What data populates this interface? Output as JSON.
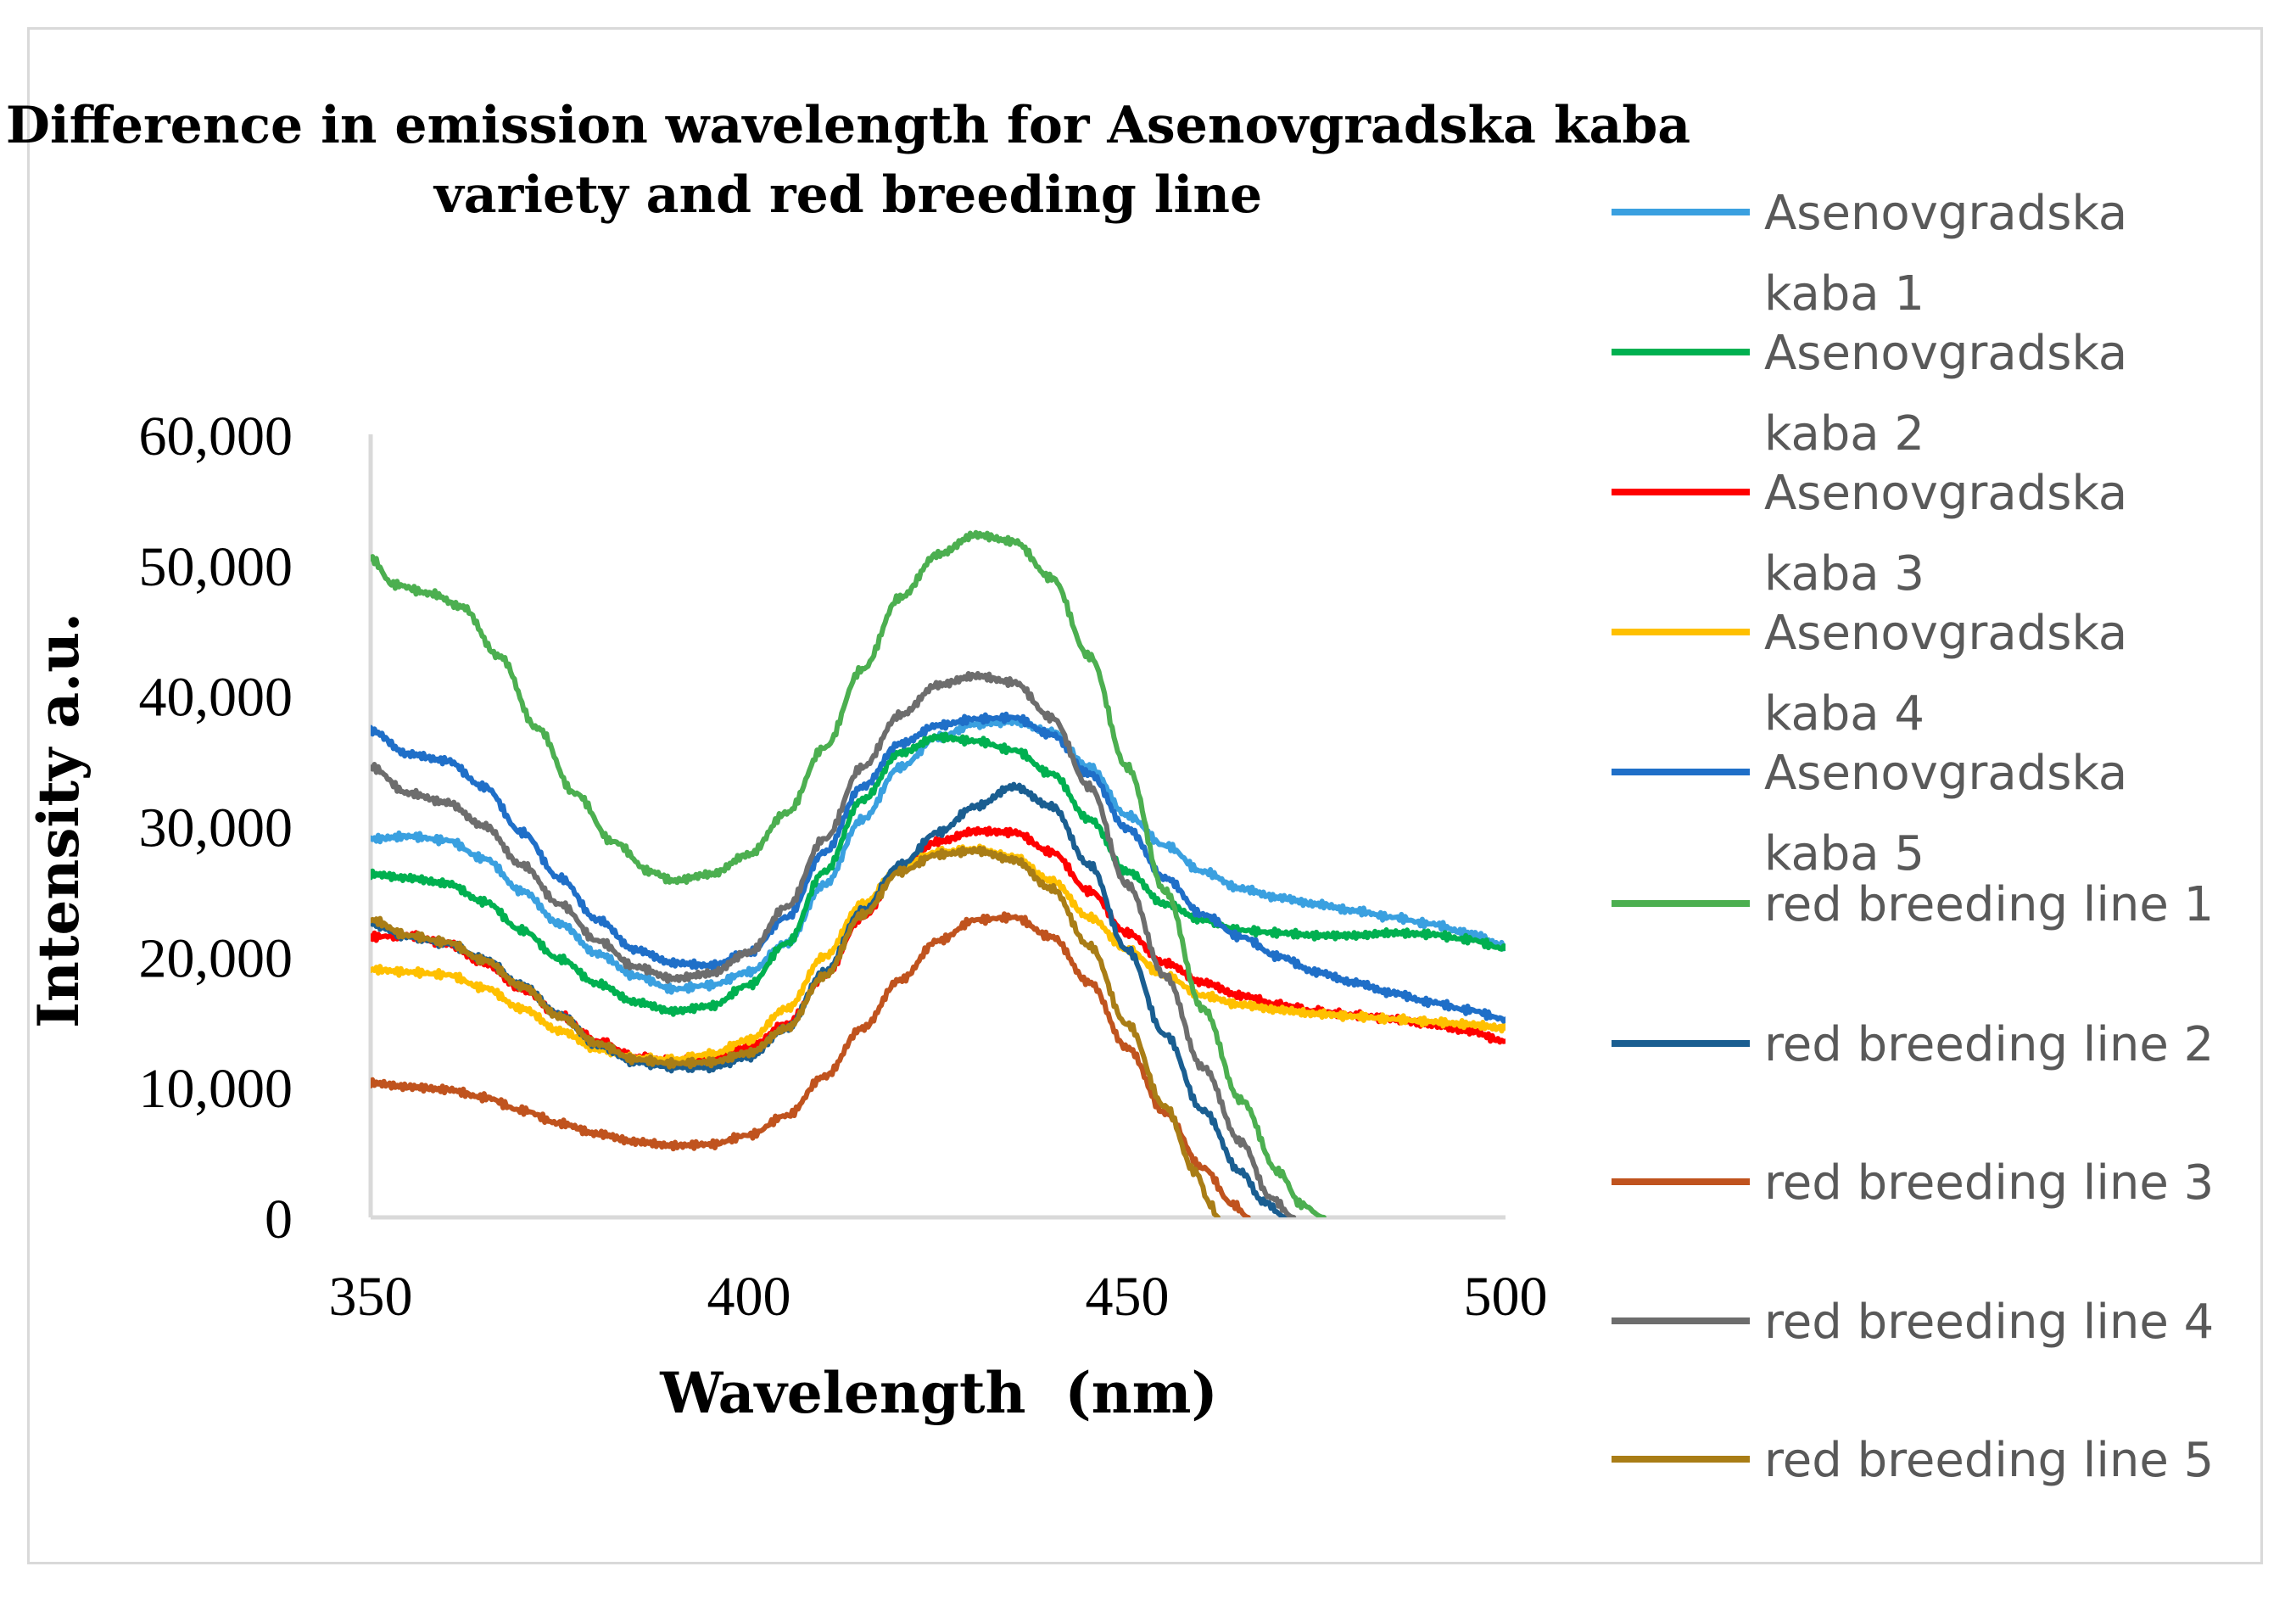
{
  "chart_data": {
    "type": "line",
    "title": "Difference in emission wavelength for Asenovgradska kaba variety and red breeding line",
    "title_lines": [
      "Difference in emission wavelength for Asenovgradska kaba",
      "variety and red breeding line"
    ],
    "xlabel": "Wavelength  (nm)",
    "ylabel": "Intensity a.u.",
    "xlim": [
      350,
      500
    ],
    "ylim": [
      0,
      60000
    ],
    "x_ticks": [
      350,
      400,
      450,
      500
    ],
    "y_ticks": [
      0,
      10000,
      20000,
      30000,
      40000,
      50000,
      60000
    ],
    "x_tick_labels": [
      "350",
      "400",
      "450",
      "500"
    ],
    "y_tick_labels": [
      "0",
      "10,000",
      "20,000",
      "30,000",
      "40,000",
      "50,000",
      "60,000"
    ],
    "grid": false,
    "legend_position": "right",
    "series": [
      {
        "name": "Asenovgradska kaba 1",
        "legend_lines": [
          "Asenovgradska",
          "kaba 1"
        ],
        "color": "#3aa0e0",
        "points": [
          [
            350,
            29000
          ],
          [
            355,
            29200
          ],
          [
            360,
            28900
          ],
          [
            365,
            27500
          ],
          [
            370,
            25000
          ],
          [
            375,
            22500
          ],
          [
            380,
            20200
          ],
          [
            385,
            18500
          ],
          [
            390,
            17500
          ],
          [
            395,
            17800
          ],
          [
            400,
            18800
          ],
          [
            405,
            21000
          ],
          [
            410,
            25500
          ],
          [
            415,
            30500
          ],
          [
            420,
            34500
          ],
          [
            425,
            36800
          ],
          [
            430,
            37800
          ],
          [
            435,
            38000
          ],
          [
            440,
            37200
          ],
          [
            445,
            34500
          ],
          [
            450,
            30800
          ],
          [
            455,
            28500
          ],
          [
            460,
            26500
          ],
          [
            465,
            25200
          ],
          [
            470,
            24500
          ],
          [
            475,
            24000
          ],
          [
            480,
            23500
          ],
          [
            485,
            23000
          ],
          [
            490,
            22500
          ],
          [
            495,
            21800
          ],
          [
            500,
            20800
          ]
        ]
      },
      {
        "name": "Asenovgradska kaba 2",
        "legend_lines": [
          "Asenovgradska",
          "kaba 2"
        ],
        "color": "#00b050",
        "points": [
          [
            350,
            26300
          ],
          [
            355,
            26000
          ],
          [
            360,
            25600
          ],
          [
            365,
            24200
          ],
          [
            370,
            22000
          ],
          [
            375,
            19800
          ],
          [
            380,
            17900
          ],
          [
            385,
            16500
          ],
          [
            390,
            15800
          ],
          [
            395,
            16200
          ],
          [
            400,
            17800
          ],
          [
            405,
            21000
          ],
          [
            410,
            26500
          ],
          [
            415,
            32000
          ],
          [
            420,
            35600
          ],
          [
            425,
            36800
          ],
          [
            430,
            36500
          ],
          [
            435,
            35800
          ],
          [
            440,
            34000
          ],
          [
            445,
            30500
          ],
          [
            450,
            26500
          ],
          [
            455,
            24000
          ],
          [
            460,
            22800
          ],
          [
            465,
            22000
          ],
          [
            470,
            21800
          ],
          [
            475,
            21600
          ],
          [
            480,
            21600
          ],
          [
            485,
            21800
          ],
          [
            490,
            21700
          ],
          [
            495,
            21300
          ],
          [
            500,
            20600
          ]
        ]
      },
      {
        "name": "Asenovgradska kaba 3",
        "legend_lines": [
          "Asenovgradska",
          "kaba 3"
        ],
        "color": "#ff0000",
        "points": [
          [
            350,
            21500
          ],
          [
            355,
            21600
          ],
          [
            360,
            21000
          ],
          [
            365,
            19500
          ],
          [
            370,
            17500
          ],
          [
            375,
            15500
          ],
          [
            380,
            13500
          ],
          [
            385,
            12300
          ],
          [
            390,
            12000
          ],
          [
            395,
            12200
          ],
          [
            400,
            13000
          ],
          [
            405,
            14800
          ],
          [
            410,
            18500
          ],
          [
            415,
            23000
          ],
          [
            420,
            26800
          ],
          [
            425,
            28800
          ],
          [
            430,
            29600
          ],
          [
            435,
            29500
          ],
          [
            440,
            28000
          ],
          [
            445,
            25000
          ],
          [
            450,
            21800
          ],
          [
            455,
            19500
          ],
          [
            460,
            18000
          ],
          [
            465,
            17000
          ],
          [
            470,
            16300
          ],
          [
            475,
            15800
          ],
          [
            480,
            15500
          ],
          [
            485,
            15200
          ],
          [
            490,
            14800
          ],
          [
            495,
            14300
          ],
          [
            500,
            13500
          ]
        ]
      },
      {
        "name": "Asenovgradska kaba 4",
        "legend_lines": [
          "Asenovgradska",
          "kaba 4"
        ],
        "color": "#ffc000",
        "points": [
          [
            350,
            19000
          ],
          [
            355,
            18800
          ],
          [
            360,
            18600
          ],
          [
            365,
            17600
          ],
          [
            370,
            16000
          ],
          [
            375,
            14300
          ],
          [
            380,
            12900
          ],
          [
            385,
            12200
          ],
          [
            390,
            12100
          ],
          [
            395,
            12500
          ],
          [
            400,
            13600
          ],
          [
            405,
            16000
          ],
          [
            410,
            20000
          ],
          [
            415,
            24000
          ],
          [
            420,
            26800
          ],
          [
            425,
            28000
          ],
          [
            430,
            28200
          ],
          [
            435,
            27600
          ],
          [
            440,
            25800
          ],
          [
            445,
            23000
          ],
          [
            450,
            20500
          ],
          [
            455,
            18500
          ],
          [
            460,
            17000
          ],
          [
            465,
            16300
          ],
          [
            470,
            15900
          ],
          [
            475,
            15600
          ],
          [
            480,
            15400
          ],
          [
            485,
            15200
          ],
          [
            490,
            15000
          ],
          [
            495,
            14800
          ],
          [
            500,
            14500
          ]
        ]
      },
      {
        "name": "Asenovgradska kaba 5",
        "legend_lines": [
          "Asenovgradska",
          "kaba 5"
        ],
        "color": "#1f6fc8",
        "points": [
          [
            350,
            37300
          ],
          [
            355,
            35500
          ],
          [
            360,
            35000
          ],
          [
            365,
            33000
          ],
          [
            370,
            29500
          ],
          [
            375,
            26000
          ],
          [
            380,
            22800
          ],
          [
            385,
            20500
          ],
          [
            390,
            19500
          ],
          [
            395,
            19300
          ],
          [
            400,
            20300
          ],
          [
            405,
            23000
          ],
          [
            410,
            28000
          ],
          [
            415,
            33000
          ],
          [
            420,
            36300
          ],
          [
            425,
            37700
          ],
          [
            430,
            38200
          ],
          [
            435,
            38300
          ],
          [
            440,
            37000
          ],
          [
            445,
            34000
          ],
          [
            450,
            29800
          ],
          [
            455,
            26000
          ],
          [
            460,
            23200
          ],
          [
            465,
            21500
          ],
          [
            470,
            20000
          ],
          [
            475,
            18800
          ],
          [
            480,
            18000
          ],
          [
            485,
            17200
          ],
          [
            490,
            16500
          ],
          [
            495,
            15900
          ],
          [
            500,
            15200
          ]
        ]
      },
      {
        "name": "red breeding line 1",
        "legend_lines": [
          "red breeding line 1"
        ],
        "color": "#4caf50",
        "points": [
          [
            350,
            50500
          ],
          [
            353,
            48500
          ],
          [
            358,
            47800
          ],
          [
            362,
            46800
          ],
          [
            367,
            43000
          ],
          [
            372,
            37500
          ],
          [
            377,
            32500
          ],
          [
            382,
            28800
          ],
          [
            387,
            26500
          ],
          [
            390,
            25800
          ],
          [
            395,
            26300
          ],
          [
            400,
            27800
          ],
          [
            405,
            31000
          ],
          [
            410,
            36000
          ],
          [
            415,
            42000
          ],
          [
            420,
            47500
          ],
          [
            425,
            50800
          ],
          [
            430,
            52300
          ],
          [
            435,
            51800
          ],
          [
            440,
            49000
          ],
          [
            445,
            43000
          ],
          [
            450,
            34500
          ],
          [
            455,
            25000
          ],
          [
            460,
            16000
          ],
          [
            465,
            9000
          ],
          [
            470,
            3500
          ],
          [
            473,
            1000
          ],
          [
            476,
            0
          ]
        ]
      },
      {
        "name": "red breeding line 2",
        "legend_lines": [
          "red breeding line 2"
        ],
        "color": "#1a5e91",
        "points": [
          [
            350,
            22500
          ],
          [
            355,
            21500
          ],
          [
            360,
            21000
          ],
          [
            365,
            19800
          ],
          [
            370,
            17800
          ],
          [
            375,
            15500
          ],
          [
            380,
            13200
          ],
          [
            385,
            11900
          ],
          [
            390,
            11500
          ],
          [
            395,
            11500
          ],
          [
            400,
            12300
          ],
          [
            405,
            14500
          ],
          [
            410,
            18800
          ],
          [
            415,
            23500
          ],
          [
            420,
            27000
          ],
          [
            425,
            29500
          ],
          [
            430,
            31500
          ],
          [
            435,
            33000
          ],
          [
            440,
            31500
          ],
          [
            445,
            27000
          ],
          [
            450,
            20500
          ],
          [
            455,
            14000
          ],
          [
            460,
            8200
          ],
          [
            465,
            3500
          ],
          [
            468,
            1200
          ],
          [
            471,
            0
          ]
        ]
      },
      {
        "name": "red breeding line 3",
        "legend_lines": [
          "red breeding line 3"
        ],
        "color": "#c0531e",
        "points": [
          [
            350,
            10300
          ],
          [
            355,
            10000
          ],
          [
            360,
            9800
          ],
          [
            365,
            9200
          ],
          [
            370,
            8200
          ],
          [
            375,
            7200
          ],
          [
            380,
            6400
          ],
          [
            385,
            5800
          ],
          [
            390,
            5500
          ],
          [
            395,
            5600
          ],
          [
            400,
            6300
          ],
          [
            405,
            7800
          ],
          [
            410,
            10800
          ],
          [
            415,
            14500
          ],
          [
            420,
            18200
          ],
          [
            425,
            21200
          ],
          [
            430,
            22800
          ],
          [
            435,
            23000
          ],
          [
            440,
            21500
          ],
          [
            445,
            18000
          ],
          [
            450,
            13000
          ],
          [
            455,
            8000
          ],
          [
            460,
            3800
          ],
          [
            464,
            1000
          ],
          [
            466,
            0
          ]
        ]
      },
      {
        "name": "red breeding line 4",
        "legend_lines": [
          "red breeding line 4"
        ],
        "color": "#6d6d6d",
        "points": [
          [
            350,
            34500
          ],
          [
            355,
            32500
          ],
          [
            360,
            31800
          ],
          [
            365,
            30000
          ],
          [
            370,
            27000
          ],
          [
            375,
            24000
          ],
          [
            380,
            21200
          ],
          [
            385,
            19200
          ],
          [
            390,
            18300
          ],
          [
            395,
            18700
          ],
          [
            400,
            20300
          ],
          [
            405,
            23800
          ],
          [
            410,
            29000
          ],
          [
            415,
            34500
          ],
          [
            420,
            38500
          ],
          [
            425,
            40800
          ],
          [
            430,
            41500
          ],
          [
            435,
            41000
          ],
          [
            440,
            38300
          ],
          [
            445,
            33000
          ],
          [
            450,
            25500
          ],
          [
            455,
            18500
          ],
          [
            460,
            11500
          ],
          [
            465,
            5800
          ],
          [
            469,
            1500
          ],
          [
            472,
            0
          ]
        ]
      },
      {
        "name": "red breeding line 5",
        "legend_lines": [
          "red breeding line 5"
        ],
        "color": "#a97d16",
        "points": [
          [
            350,
            22800
          ],
          [
            355,
            21600
          ],
          [
            360,
            21100
          ],
          [
            365,
            19700
          ],
          [
            370,
            17700
          ],
          [
            375,
            15400
          ],
          [
            380,
            13300
          ],
          [
            385,
            12100
          ],
          [
            390,
            11800
          ],
          [
            395,
            11900
          ],
          [
            400,
            12600
          ],
          [
            405,
            14500
          ],
          [
            410,
            18500
          ],
          [
            415,
            23200
          ],
          [
            420,
            26500
          ],
          [
            425,
            27800
          ],
          [
            430,
            28100
          ],
          [
            435,
            27400
          ],
          [
            440,
            25200
          ],
          [
            445,
            20800
          ],
          [
            450,
            14800
          ],
          [
            455,
            8500
          ],
          [
            459,
            3500
          ],
          [
            461,
            1000
          ],
          [
            462,
            0
          ]
        ]
      }
    ]
  }
}
